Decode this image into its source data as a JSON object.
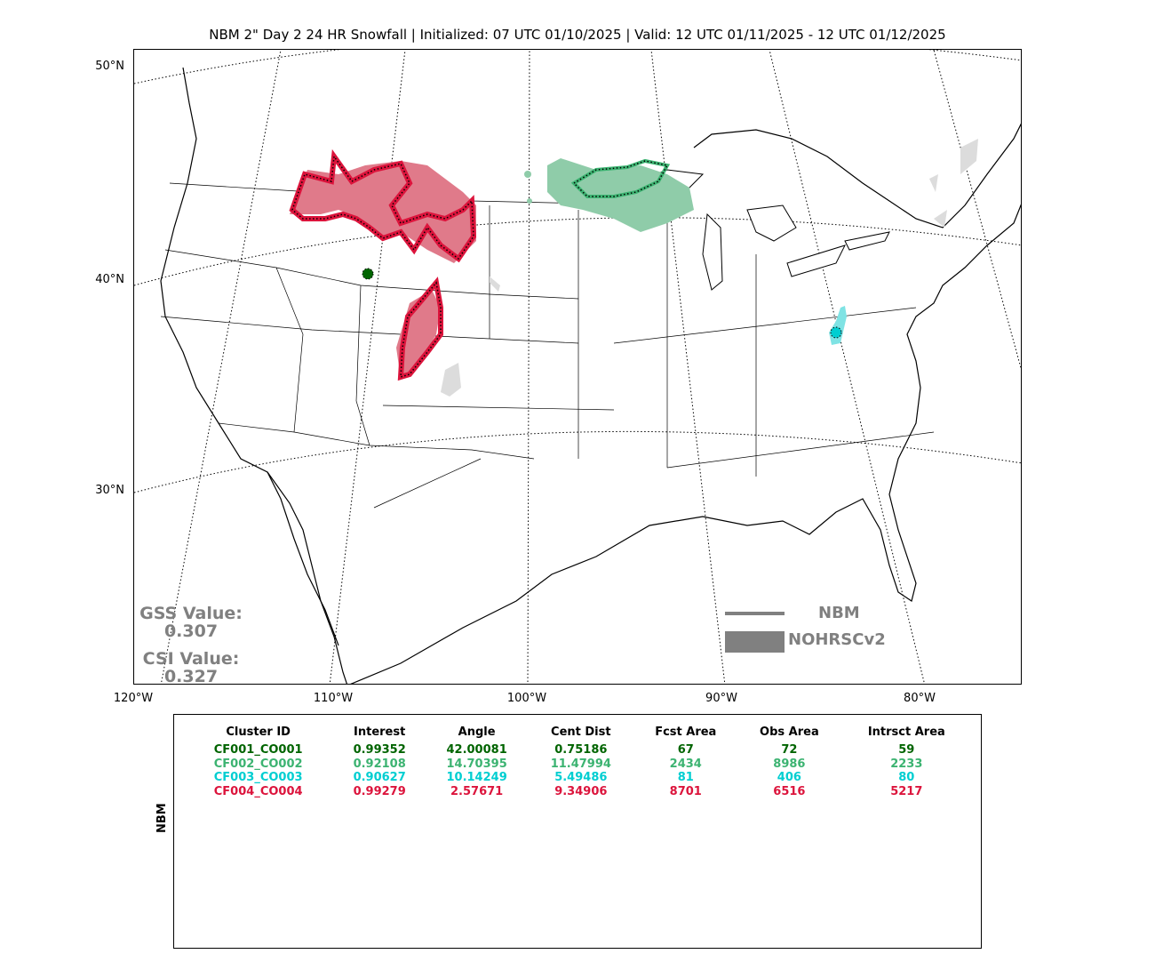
{
  "title": "NBM 2\" Day 2 24 HR Snowfall | Initialized: 07 UTC 01/10/2025 | Valid: 12 UTC 01/11/2025 - 12 UTC 01/12/2025",
  "lat_labels": [
    "50°N",
    "40°N",
    "30°N"
  ],
  "lon_labels": [
    "120°W",
    "110°W",
    "100°W",
    "90°W",
    "80°W"
  ],
  "scores": {
    "gss_label": "GSS Value:",
    "gss_value": "0.307",
    "csi_label": "CSI Value:",
    "csi_value": "0.327"
  },
  "legend": {
    "line_label": "NBM",
    "fill_label": "NOHRSCv2",
    "color": "#808080"
  },
  "table": {
    "ylabel": "NBM",
    "headers": [
      "Cluster ID",
      "Interest",
      "Angle",
      "Cent Dist",
      "Fcst Area",
      "Obs Area",
      "Intrsct Area"
    ],
    "rows": [
      {
        "color": "#006400",
        "cells": [
          "CF001_CO001",
          "0.99352",
          "42.00081",
          "0.75186",
          "67",
          "72",
          "59"
        ]
      },
      {
        "color": "#3cb371",
        "cells": [
          "CF002_CO002",
          "0.92108",
          "14.70395",
          "11.47994",
          "2434",
          "8986",
          "2233"
        ]
      },
      {
        "color": "#00ced1",
        "cells": [
          "CF003_CO003",
          "0.90627",
          "10.14249",
          "5.49486",
          "81",
          "406",
          "80"
        ]
      },
      {
        "color": "#dc143c",
        "cells": [
          "CF004_CO004",
          "0.99279",
          "2.57671",
          "9.34906",
          "8701",
          "6516",
          "5217"
        ]
      }
    ]
  },
  "clusters": [
    {
      "id": "CF001_CO001",
      "color": "#006400",
      "region": "northern Utah"
    },
    {
      "id": "CF002_CO002",
      "color": "#3cb371",
      "region": "Minnesota / Lake Superior"
    },
    {
      "id": "CF003_CO003",
      "color": "#00ced1",
      "region": "West Virginia"
    },
    {
      "id": "CF004_CO004",
      "color": "#dc143c",
      "region": "Montana / Wyoming / Colorado"
    }
  ]
}
